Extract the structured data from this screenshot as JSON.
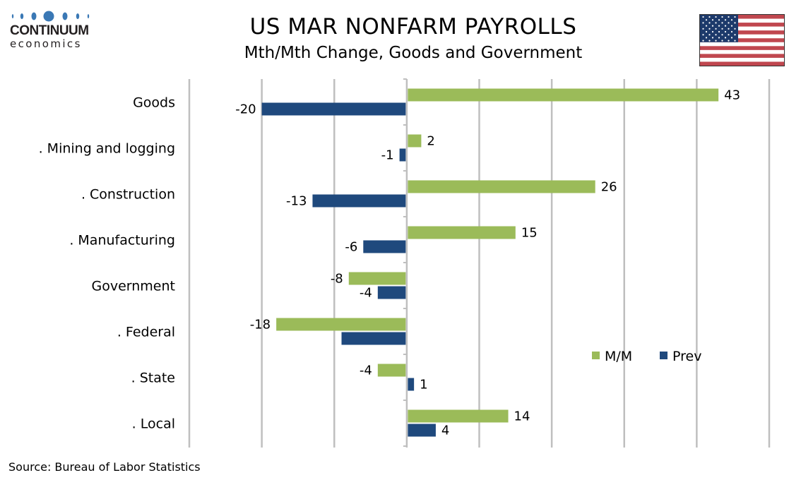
{
  "header": {
    "title": "US MAR NONFARM PAYROLLS",
    "subtitle": "Mth/Mth Change, Goods and Government"
  },
  "logo": {
    "name": "CONTINUUM",
    "sub": "economics",
    "color": "#3a78b5"
  },
  "flag": {
    "icon": "us-flag-icon"
  },
  "footer": {
    "source": "Source: Bureau of Labor Statistics"
  },
  "colors": {
    "mm": "#9BBB59",
    "prev": "#1F497D",
    "grid": "#BFBFBF"
  },
  "chart_data": {
    "type": "bar",
    "orientation": "horizontal",
    "title": "US MAR NONFARM PAYROLLS",
    "subtitle": "Mth/Mth Change, Goods and Government",
    "xlabel": "",
    "ylabel": "",
    "xlim": [
      -30,
      50
    ],
    "x_grid_step": 10,
    "grid": true,
    "tick_labels_shown": false,
    "legend_position": "bottom-right",
    "categories": [
      "Goods",
      ". Mining and logging",
      ". Construction",
      ". Manufacturing",
      "Government",
      ". Federal",
      ". State",
      ". Local"
    ],
    "series": [
      {
        "name": "M/M",
        "values": [
          43,
          2,
          26,
          15,
          -8,
          -18,
          -4,
          14
        ],
        "labels": [
          "43",
          "2",
          "26",
          "15",
          "-8",
          "-18",
          "-4",
          "14"
        ]
      },
      {
        "name": "Prev",
        "values": [
          -20,
          -1,
          -13,
          -6,
          -4,
          -9,
          1,
          4
        ],
        "labels": [
          "-20",
          "-1",
          "-13",
          "-6",
          "-4",
          "",
          "1",
          "4"
        ]
      }
    ]
  }
}
